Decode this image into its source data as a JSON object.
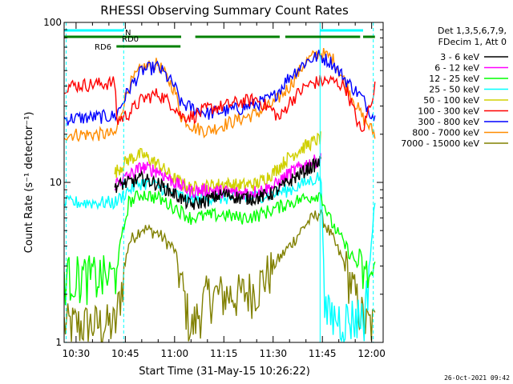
{
  "chart_data": {
    "type": "line",
    "title": "RHESSI Observing Summary Count Rates",
    "xlabel": "Start Time (31-May-15 10:26:22)",
    "ylabel": "Count Rate (s⁻¹ detector⁻¹)",
    "footer": "26-Oct-2021 09:42",
    "y_scale": "log",
    "ylim": [
      1,
      100
    ],
    "x_range_minutes": [
      "10:26:22",
      "12:03:30"
    ],
    "x_ticks": [
      "10:30",
      "10:45",
      "11:00",
      "11:15",
      "11:30",
      "11:45",
      "12:00"
    ],
    "x_tick_minutes": [
      30,
      45,
      60,
      75,
      90,
      105,
      120
    ],
    "y_ticks": [
      "1",
      "10",
      "100"
    ],
    "y_tick_values": [
      1,
      10,
      100
    ],
    "legend_header": [
      "Det 1,3,5,6,7,9,",
      "FDecim 1, Att 0"
    ],
    "legend_position": "right",
    "flags": [
      {
        "label": "N",
        "color": "#00ffff",
        "segments": [
          [
            26.4,
            44.5
          ],
          [
            104.3,
            117.4
          ]
        ]
      },
      {
        "label": "RD0",
        "color": "#008000",
        "segments": [
          [
            26.4,
            44.5
          ],
          [
            44.5,
            62.0
          ],
          [
            66.3,
            92.0
          ],
          [
            93.7,
            116.5
          ],
          [
            117.4,
            121.0
          ]
        ]
      },
      {
        "label": "RD6",
        "color": "#008000",
        "segments": [
          [
            42.3,
            61.8
          ]
        ]
      }
    ],
    "event_lines": [
      {
        "time": 27.0,
        "color": "#00ffff"
      },
      {
        "time": 44.5,
        "color": "#00ffff"
      },
      {
        "time": 104.3,
        "color": "#00ffff"
      },
      {
        "time": 120.5,
        "color": "#00ffff"
      }
    ],
    "series": [
      {
        "name": "3 - 6 keV",
        "color": "#000000",
        "times": [
          41.8,
          46,
          50,
          55,
          60,
          65,
          70,
          75,
          80,
          85,
          90,
          95,
          100,
          104.5
        ],
        "values": [
          9.5,
          10.0,
          10.6,
          9.8,
          8.5,
          7.2,
          7.8,
          8.5,
          8.0,
          8.0,
          8.6,
          10.2,
          12.0,
          13.5
        ]
      },
      {
        "name": "6 - 12 keV",
        "color": "#ff00ff",
        "times": [
          41.8,
          46,
          50,
          55,
          60,
          65,
          70,
          75,
          80,
          85,
          90,
          95,
          100,
          104.5
        ],
        "values": [
          9.8,
          11.0,
          12.5,
          11.8,
          10.0,
          8.8,
          9.0,
          8.8,
          8.6,
          8.8,
          9.4,
          11.5,
          13.0,
          14.0
        ]
      },
      {
        "name": "12 - 25 keV",
        "color": "#00ff00",
        "times": [
          26.4,
          41.8,
          46,
          50,
          55,
          60,
          65,
          70,
          75,
          80,
          85,
          90,
          95,
          100,
          104.5,
          107,
          112,
          118,
          121
        ],
        "values": [
          2.6,
          2.6,
          7.5,
          8.5,
          8.0,
          7.0,
          6.0,
          6.2,
          6.3,
          6.0,
          6.2,
          6.8,
          7.5,
          8.0,
          8.5,
          6.0,
          4.0,
          2.6,
          2.6
        ]
      },
      {
        "name": "25 - 50 keV",
        "color": "#00ffff",
        "times": [
          26.4,
          42,
          46,
          50,
          55,
          60,
          65,
          70,
          75,
          80,
          85,
          90,
          95,
          100,
          104.5,
          106,
          112,
          118,
          121
        ],
        "values": [
          7.5,
          7.5,
          9.0,
          10.0,
          9.5,
          8.5,
          7.8,
          8.0,
          8.0,
          8.0,
          8.2,
          8.5,
          9.0,
          10.0,
          11.0,
          1.5,
          1.4,
          1.5,
          7.5
        ]
      },
      {
        "name": "50 - 100 keV",
        "color": "#d0d000",
        "times": [
          41.8,
          46,
          50,
          55,
          60,
          65,
          70,
          75,
          80,
          85,
          90,
          95,
          100,
          104.5
        ],
        "values": [
          11.5,
          14.0,
          15.0,
          13.0,
          10.5,
          9.2,
          9.5,
          9.8,
          9.6,
          9.8,
          11.5,
          14.5,
          17.0,
          19.0
        ]
      },
      {
        "name": "100 - 300 keV",
        "color": "#ff0000",
        "times": [
          26.4,
          42,
          42.3,
          46,
          50,
          55,
          60,
          62,
          66,
          70,
          75,
          80,
          85,
          90,
          92,
          95,
          100,
          104,
          108,
          112,
          117,
          121
        ],
        "values": [
          40,
          42,
          24,
          27,
          33,
          36,
          30,
          26,
          26,
          29,
          30,
          32,
          33,
          28,
          25,
          32,
          40,
          43,
          43,
          40,
          20,
          40
        ]
      },
      {
        "name": "300 - 800 keV",
        "color": "#0000ff",
        "times": [
          26.4,
          42,
          44,
          46,
          50,
          55,
          60,
          62,
          66,
          70,
          75,
          80,
          85,
          90,
          95,
          100,
          104,
          108,
          112,
          117,
          121
        ],
        "values": [
          25,
          26,
          31,
          38,
          50,
          53,
          40,
          31,
          29,
          27,
          28,
          29,
          31,
          34,
          46,
          57,
          62,
          56,
          44,
          34,
          25
        ]
      },
      {
        "name": "800 - 7000 keV",
        "color": "#ff8c00",
        "times": [
          26.4,
          42,
          44,
          46,
          50,
          55,
          60,
          62,
          66,
          70,
          75,
          80,
          85,
          90,
          95,
          100,
          104,
          108,
          112,
          117,
          121
        ],
        "values": [
          20,
          20,
          29,
          40,
          52,
          55,
          38,
          26,
          22,
          21,
          23,
          25,
          27,
          31,
          40,
          57,
          65,
          60,
          42,
          26,
          20
        ]
      },
      {
        "name": "7000 - 15000 keV",
        "color": "#808000",
        "times": [
          26.4,
          42,
          46,
          50,
          55,
          60,
          65,
          70,
          75,
          80,
          85,
          90,
          95,
          100,
          104,
          108,
          112,
          118,
          121
        ],
        "values": [
          1.3,
          1.3,
          4.2,
          5.2,
          4.8,
          3.8,
          1.2,
          2.0,
          2.0,
          2.0,
          2.2,
          3.0,
          4.0,
          5.5,
          6.5,
          4.5,
          3.0,
          1.3,
          1.3
        ]
      }
    ]
  }
}
